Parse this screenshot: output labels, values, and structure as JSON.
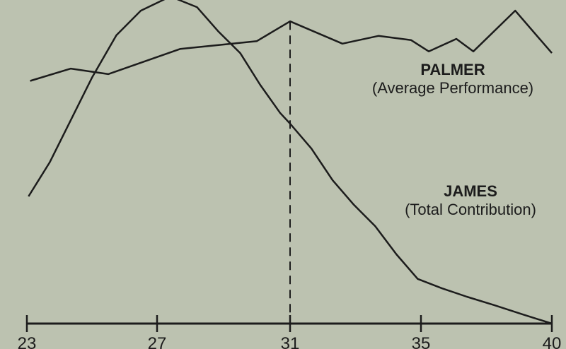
{
  "chart_data": {
    "type": "line",
    "title": "",
    "xlabel": "",
    "ylabel": "",
    "x_ticks": [
      23,
      27,
      31,
      35,
      40
    ],
    "ylim": [
      0,
      100
    ],
    "grid": false,
    "reference_line": {
      "x": 31,
      "style": "dashed"
    },
    "line_color": "#1c1c1c",
    "background_color": "#bcc2b0",
    "series": [
      {
        "name": "PALMER",
        "subtitle": "(Average Performance)",
        "x": [
          23.1,
          24.35,
          25.5,
          27.7,
          30.0,
          31,
          32.6,
          33.7,
          34.7,
          35.3,
          36.35,
          37.0,
          38.6,
          40
        ],
        "y": [
          75,
          78.8,
          77.1,
          84.9,
          87.3,
          93.4,
          86.5,
          88.9,
          87.6,
          84.1,
          88.0,
          84.1,
          96.7,
          83.6
        ]
      },
      {
        "name": "JAMES",
        "subtitle": "(Total Contribution)",
        "x": [
          23.05,
          23.7,
          24.35,
          25.0,
          25.75,
          26.5,
          27.4,
          28.2,
          28.85,
          29.5,
          30.1,
          30.7,
          31,
          31.65,
          32.3,
          32.95,
          33.6,
          34.25,
          34.9,
          35.8,
          36.75,
          37.8,
          38.9,
          40
        ],
        "y": [
          39.3,
          49.8,
          62.9,
          76.0,
          89.1,
          96.7,
          101.1,
          97.8,
          90.2,
          83.6,
          73.8,
          65.1,
          61.8,
          54.1,
          44.3,
          36.7,
          30.1,
          21.4,
          13.8,
          10.9,
          8.3,
          5.7,
          2.8,
          0
        ]
      }
    ]
  }
}
